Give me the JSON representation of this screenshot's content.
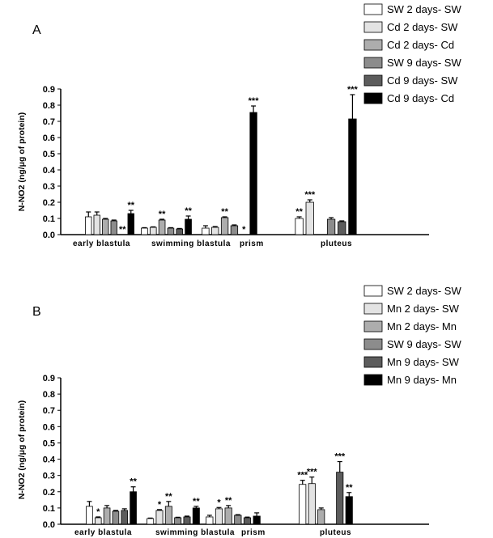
{
  "chart_data": [
    {
      "type": "bar",
      "panel_label": "A",
      "ylabel": "N-NO2 (ng/μg of protein)",
      "ylim": [
        0,
        0.9
      ],
      "yticks": [
        "0.0",
        "0.1",
        "0.2",
        "0.3",
        "0.4",
        "0.5",
        "0.6",
        "0.7",
        "0.8",
        "0.9"
      ],
      "categories": [
        "early blastula",
        "swimming blastula",
        "prism",
        "pluteus"
      ],
      "series": [
        {
          "name": "SW 2 days- SW",
          "style": "white",
          "values": [
            0.11,
            0.04,
            0.04,
            0.1
          ],
          "errors": [
            0.03,
            0.003,
            0.015,
            0.01
          ],
          "stars": [
            "",
            "",
            "",
            "**"
          ]
        },
        {
          "name": "Cd 2 days- SW",
          "style": "lightgray",
          "values": [
            0.12,
            0.045,
            0.045,
            0.2
          ],
          "errors": [
            0.02,
            0.003,
            0.005,
            0.015
          ],
          "stars": [
            "",
            "",
            "",
            "***"
          ]
        },
        {
          "name": "Cd 2 days- Cd",
          "style": "gray",
          "values": [
            0.095,
            0.09,
            0.105,
            0.0
          ],
          "errors": [
            0.005,
            0.005,
            0.005,
            0.0
          ],
          "stars": [
            "",
            "**",
            "**",
            ""
          ]
        },
        {
          "name": "SW 9 days- SW",
          "style": "midgray",
          "values": [
            0.085,
            0.04,
            0.055,
            0.095
          ],
          "errors": [
            0.005,
            0.003,
            0.005,
            0.01
          ],
          "stars": [
            "",
            "",
            "",
            ""
          ]
        },
        {
          "name": "Cd 9 days- SW",
          "style": "darkgray",
          "values": [
            0.0,
            0.035,
            0.0,
            0.08
          ],
          "errors": [
            0.0,
            0.003,
            0.0,
            0.005
          ],
          "stars": [
            "**",
            "",
            "*",
            ""
          ]
        },
        {
          "name": "Cd 9 days- Cd",
          "style": "black",
          "values": [
            0.13,
            0.095,
            0.755,
            0.715
          ],
          "errors": [
            0.02,
            0.02,
            0.04,
            0.15
          ],
          "stars": [
            "**",
            "**",
            "***",
            "***"
          ]
        }
      ]
    },
    {
      "type": "bar",
      "panel_label": "B",
      "ylabel": "N-NO2 (ng/μg of protein)",
      "ylim": [
        0,
        0.9
      ],
      "yticks": [
        "0.0",
        "0.1",
        "0.2",
        "0.3",
        "0.4",
        "0.5",
        "0.6",
        "0.7",
        "0.8",
        "0.9"
      ],
      "categories": [
        "early blastula",
        "swimming blastula",
        "prism",
        "pluteus"
      ],
      "series": [
        {
          "name": "SW 2 days- SW",
          "style": "white",
          "values": [
            0.11,
            0.035,
            0.045,
            0.245
          ],
          "errors": [
            0.03,
            0.003,
            0.01,
            0.025
          ],
          "stars": [
            "",
            "",
            "",
            "***"
          ]
        },
        {
          "name": "Mn 2 days- SW",
          "style": "lightgray",
          "values": [
            0.04,
            0.085,
            0.095,
            0.25
          ],
          "errors": [
            0.005,
            0.005,
            0.008,
            0.04
          ],
          "stars": [
            "*",
            "*",
            "*",
            "***"
          ]
        },
        {
          "name": "Mn 2 days- Mn",
          "style": "gray",
          "values": [
            0.1,
            0.11,
            0.1,
            0.09
          ],
          "errors": [
            0.015,
            0.03,
            0.015,
            0.01
          ],
          "stars": [
            "",
            "**",
            "**",
            ""
          ]
        },
        {
          "name": "SW 9 days- SW",
          "style": "midgray",
          "values": [
            0.08,
            0.04,
            0.055,
            0.0
          ],
          "errors": [
            0.005,
            0.003,
            0.004,
            0.0
          ],
          "stars": [
            "",
            "",
            "",
            ""
          ]
        },
        {
          "name": "Mn 9 days- SW",
          "style": "darkgray",
          "values": [
            0.085,
            0.045,
            0.04,
            0.32
          ],
          "errors": [
            0.01,
            0.005,
            0.004,
            0.065
          ],
          "stars": [
            "",
            "",
            "",
            "***"
          ]
        },
        {
          "name": "Mn 9 days- Mn",
          "style": "black",
          "values": [
            0.2,
            0.1,
            0.05,
            0.17
          ],
          "errors": [
            0.03,
            0.01,
            0.02,
            0.025
          ],
          "stars": [
            "**",
            "**",
            "",
            "**"
          ]
        }
      ]
    }
  ],
  "colors": {
    "white": "#ffffff",
    "lightgray": "#e3e3e3",
    "gray": "#adadad",
    "midgray": "#8c8c8c",
    "darkgray": "#5c5c5c",
    "black": "#000000",
    "axis": "#000000"
  }
}
